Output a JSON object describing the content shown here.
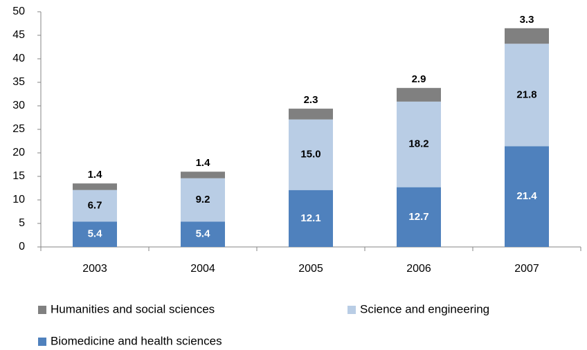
{
  "chart_data": {
    "type": "stacked-bar",
    "categories": [
      "2003",
      "2004",
      "2005",
      "2006",
      "2007"
    ],
    "series": [
      {
        "name": "Biomedicine and health sciences",
        "color": "#4f81bd",
        "values": [
          5.4,
          5.4,
          12.1,
          12.7,
          21.4
        ],
        "value_labels": [
          "5.4",
          "5.4",
          "12.1",
          "12.7",
          "21.4"
        ]
      },
      {
        "name": "Science and engineering",
        "color": "#b9cde5",
        "values": [
          6.7,
          9.2,
          15.0,
          18.2,
          21.8
        ],
        "value_labels": [
          "6.7",
          "9.2",
          "15.0",
          "18.2",
          "21.8"
        ]
      },
      {
        "name": "Humanities and social sciences",
        "color": "#808080",
        "values": [
          1.4,
          1.4,
          2.3,
          2.9,
          3.3
        ],
        "value_labels": [
          "1.4",
          "1.4",
          "2.3",
          "2.9",
          "3.3"
        ]
      }
    ],
    "ylim": [
      0,
      50
    ],
    "yticks": [
      0,
      5,
      10,
      15,
      20,
      25,
      30,
      35,
      40,
      45,
      50
    ],
    "grid": false
  }
}
